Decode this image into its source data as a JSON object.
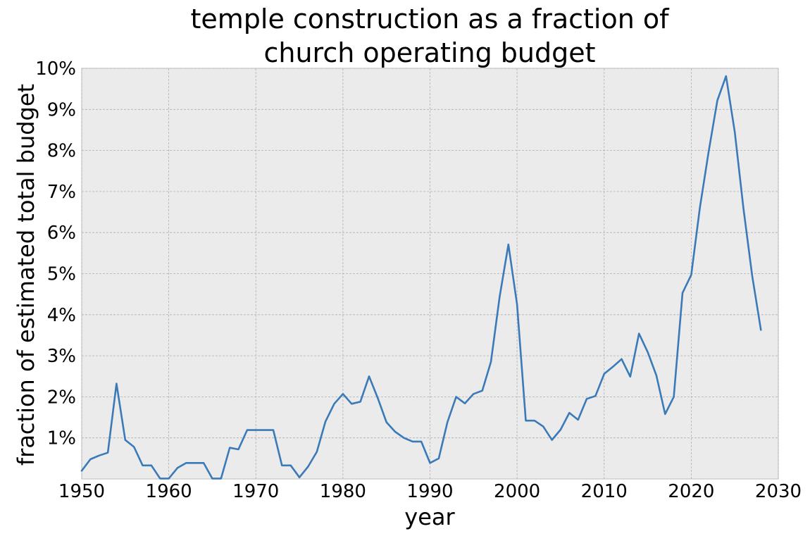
{
  "chart_data": {
    "type": "line",
    "title_lines": [
      "temple construction as a fraction of",
      "church operating budget"
    ],
    "xlabel": "year",
    "ylabel": "fraction of estimated total budget",
    "xlim": [
      1950,
      2030
    ],
    "ylim": [
      0,
      10
    ],
    "x_ticks": [
      1950,
      1960,
      1970,
      1980,
      1990,
      2000,
      2010,
      2020,
      2030
    ],
    "x_tick_labels": [
      "1950",
      "1960",
      "1970",
      "1980",
      "1990",
      "2000",
      "2010",
      "2020",
      "2030"
    ],
    "y_ticks": [
      1,
      2,
      3,
      4,
      5,
      6,
      7,
      8,
      9,
      10
    ],
    "y_tick_labels": [
      "1%",
      "2%",
      "3%",
      "4%",
      "5%",
      "6%",
      "7%",
      "8%",
      "9%",
      "10%"
    ],
    "grid": true,
    "background": "#ebebeb",
    "series": [
      {
        "color": "#3a7ab8",
        "x": [
          1950,
          1951,
          1952,
          1953,
          1954,
          1955,
          1956,
          1957,
          1958,
          1959,
          1960,
          1961,
          1962,
          1963,
          1964,
          1965,
          1966,
          1967,
          1968,
          1969,
          1970,
          1971,
          1972,
          1973,
          1974,
          1975,
          1976,
          1977,
          1978,
          1979,
          1980,
          1981,
          1982,
          1983,
          1984,
          1985,
          1986,
          1987,
          1988,
          1989,
          1990,
          1991,
          1992,
          1993,
          1994,
          1995,
          1996,
          1997,
          1998,
          1999,
          2000,
          2001,
          2002,
          2003,
          2004,
          2005,
          2006,
          2007,
          2008,
          2009,
          2010,
          2011,
          2012,
          2013,
          2014,
          2015,
          2016,
          2017,
          2018,
          2019,
          2020,
          2021,
          2022,
          2023,
          2024,
          2025,
          2026,
          2027,
          2028
        ],
        "values": [
          0.2,
          0.48,
          0.57,
          0.64,
          2.32,
          0.95,
          0.78,
          0.33,
          0.33,
          0.01,
          0.01,
          0.27,
          0.39,
          0.39,
          0.39,
          0.01,
          0.01,
          0.76,
          0.72,
          1.19,
          1.19,
          1.19,
          1.19,
          0.33,
          0.33,
          0.04,
          0.3,
          0.66,
          1.4,
          1.83,
          2.07,
          1.83,
          1.88,
          2.5,
          1.97,
          1.38,
          1.15,
          1.0,
          0.91,
          0.91,
          0.39,
          0.5,
          1.38,
          2.0,
          1.84,
          2.07,
          2.15,
          2.85,
          4.44,
          5.71,
          4.25,
          1.42,
          1.42,
          1.28,
          0.95,
          1.2,
          1.61,
          1.44,
          1.95,
          2.02,
          2.56,
          2.73,
          2.92,
          2.49,
          3.54,
          3.09,
          2.52,
          1.58,
          2.0,
          4.53,
          4.97,
          6.61,
          7.97,
          9.22,
          9.81,
          8.45,
          6.59,
          4.95,
          3.63
        ]
      }
    ]
  }
}
